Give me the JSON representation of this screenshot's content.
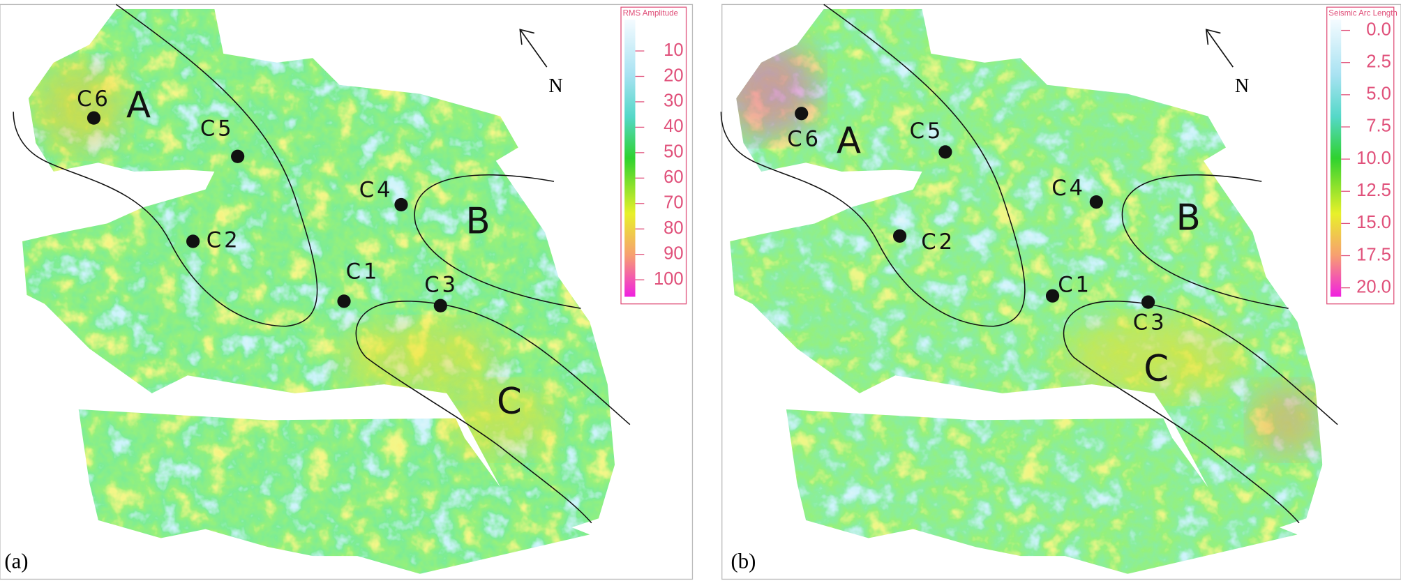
{
  "panels": [
    {
      "label": "(a)",
      "colorbar": {
        "title": "RMS Amplitude",
        "ticks": [
          "10",
          "20",
          "30",
          "40",
          "50",
          "60",
          "70",
          "80",
          "90",
          "100"
        ]
      },
      "wells": [
        "C6",
        "C5",
        "C2",
        "C4",
        "C1",
        "C3"
      ],
      "zones": [
        "A",
        "B",
        "C"
      ],
      "north": "N"
    },
    {
      "label": "(b)",
      "colorbar": {
        "title": "Seismic Arc Length",
        "ticks": [
          "0.0",
          "2.5",
          "5.0",
          "7.5",
          "10.0",
          "12.5",
          "15.0",
          "17.5",
          "20.0"
        ]
      },
      "wells": [
        "C6",
        "C5",
        "C2",
        "C4",
        "C1",
        "C3"
      ],
      "zones": [
        "A",
        "B",
        "C"
      ],
      "north": "N"
    }
  ]
}
